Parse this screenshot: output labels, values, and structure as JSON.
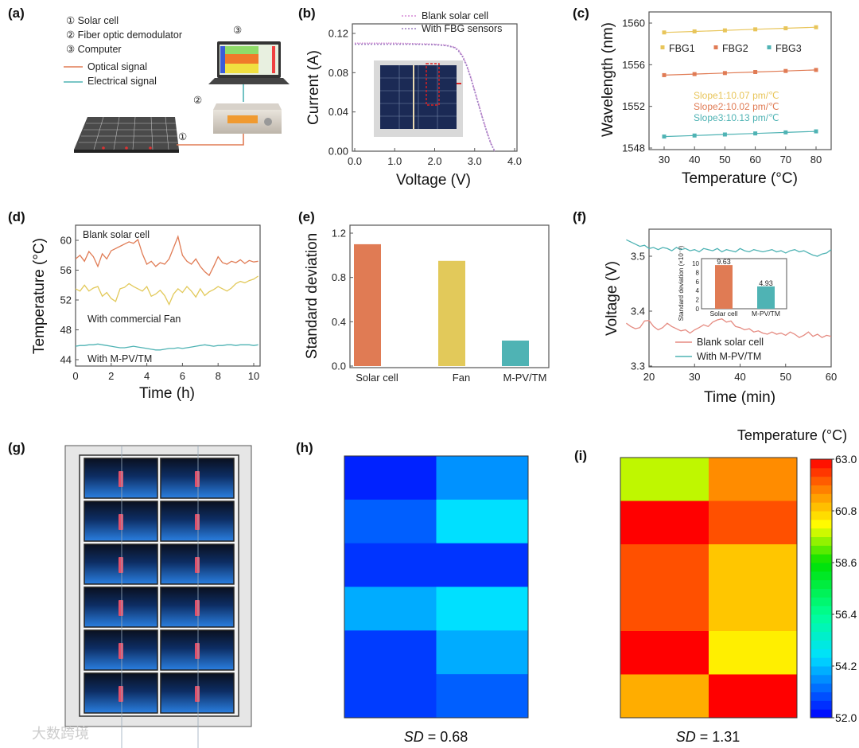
{
  "panel_labels": [
    "(a)",
    "(b)",
    "(c)",
    "(d)",
    "(e)",
    "(f)",
    "(g)",
    "(h)",
    "(i)"
  ],
  "panel_a": {
    "items": [
      "① Solar cell",
      "② Fiber optic demodulator",
      "③ Computer"
    ],
    "optical_signal": "Optical signal",
    "electrical_signal": "Electrical signal",
    "markers": [
      "①",
      "②",
      "③"
    ],
    "colors": {
      "optical": "#e07b54",
      "electrical": "#4fb3b4"
    }
  },
  "chart_data": [
    {
      "id": "b",
      "type": "line",
      "xlabel": "Voltage (V)",
      "ylabel": "Current (A)",
      "xlim": [
        0,
        4
      ],
      "ylim": [
        0,
        0.12
      ],
      "xticks": [
        "0.0",
        "1.0",
        "2.0",
        "3.0",
        "4.0"
      ],
      "xtick_values": [
        0,
        1,
        2,
        3,
        4
      ],
      "yticks": [
        "0.00",
        "0.04",
        "0.08",
        "0.12"
      ],
      "ytick_values": [
        0,
        0.04,
        0.08,
        0.12
      ],
      "legend_position": "top-right",
      "series": [
        {
          "name": "Blank solar cell",
          "color": "#d58bd6",
          "x": [
            0,
            0.5,
            1,
            1.5,
            2,
            2.3,
            2.5,
            2.6,
            2.7,
            2.8,
            2.9,
            3.0,
            3.1,
            3.2,
            3.3,
            3.4,
            3.5
          ],
          "y": [
            0.11,
            0.11,
            0.11,
            0.1095,
            0.109,
            0.108,
            0.106,
            0.103,
            0.097,
            0.088,
            0.076,
            0.062,
            0.048,
            0.034,
            0.021,
            0.009,
            0.0
          ]
        },
        {
          "name": "With FBG sensors",
          "color": "#9b7fc0",
          "x": [
            0,
            0.5,
            1,
            1.5,
            2,
            2.3,
            2.5,
            2.6,
            2.7,
            2.8,
            2.9,
            3.0,
            3.1,
            3.2,
            3.3,
            3.4,
            3.5
          ],
          "y": [
            0.109,
            0.109,
            0.109,
            0.109,
            0.1085,
            0.1075,
            0.1055,
            0.102,
            0.096,
            0.087,
            0.075,
            0.061,
            0.047,
            0.033,
            0.02,
            0.008,
            0.0
          ]
        }
      ]
    },
    {
      "id": "c",
      "type": "scatter",
      "xlabel": "Temperature (°C)",
      "ylabel": "Wavelength (nm)",
      "xlim": [
        30,
        80
      ],
      "ylim": [
        1548,
        1560
      ],
      "xticks": [
        "30",
        "40",
        "50",
        "60",
        "70",
        "80"
      ],
      "xtick_values": [
        30,
        40,
        50,
        60,
        70,
        80
      ],
      "yticks": [
        "1548",
        "1552",
        "1556",
        "1560"
      ],
      "ytick_values": [
        1548,
        1552,
        1556,
        1560
      ],
      "legend_position": "top",
      "series": [
        {
          "name": "FBG1",
          "color": "#e8c55a",
          "x": [
            30,
            40,
            50,
            60,
            70,
            80
          ],
          "y": [
            1559.1,
            1559.2,
            1559.3,
            1559.4,
            1559.5,
            1559.6
          ]
        },
        {
          "name": "FBG2",
          "color": "#e07b54",
          "x": [
            30,
            40,
            50,
            60,
            70,
            80
          ],
          "y": [
            1555.0,
            1555.1,
            1555.2,
            1555.3,
            1555.4,
            1555.5
          ]
        },
        {
          "name": "FBG3",
          "color": "#4fb3b4",
          "x": [
            30,
            40,
            50,
            60,
            70,
            80
          ],
          "y": [
            1549.1,
            1549.2,
            1549.3,
            1549.4,
            1549.5,
            1549.6
          ]
        }
      ],
      "annotations": [
        "Slope1:10.07 pm/℃",
        "Slope2:10.02 pm/℃",
        "Slope3:10.13 pm/℃"
      ]
    },
    {
      "id": "d",
      "type": "line",
      "xlabel": "Time (h)",
      "ylabel": "Temperature (°C)",
      "xlim": [
        0,
        10.3
      ],
      "ylim": [
        43,
        62
      ],
      "xticks": [
        "0",
        "2",
        "4",
        "6",
        "8",
        "10"
      ],
      "xtick_values": [
        0,
        2,
        4,
        6,
        8,
        10
      ],
      "yticks": [
        "44",
        "48",
        "52",
        "56",
        "60"
      ],
      "ytick_values": [
        44,
        48,
        52,
        56,
        60
      ],
      "x_step": 0.25,
      "series": [
        {
          "name": "Blank solar cell",
          "color": "#e07b54",
          "label_color": "#222222",
          "y": [
            57.5,
            58,
            57.2,
            58.5,
            57.8,
            56.5,
            58.2,
            57.5,
            58.6,
            58.9,
            59.2,
            59.5,
            59.8,
            59.6,
            60.1,
            58.2,
            56.8,
            57.2,
            56.5,
            57,
            56.8,
            57.5,
            59,
            60.5,
            58,
            57.2,
            56.8,
            57.5,
            56.5,
            55.8,
            55.3,
            56.5,
            57.8,
            57,
            56.8,
            57.2,
            57,
            57.4,
            56.9,
            57.3,
            57.1,
            57.2
          ]
        },
        {
          "name": "With commercial Fan",
          "color": "#e2c95a",
          "label_color": "#e2c95a",
          "y": [
            53.5,
            53.2,
            54,
            53.2,
            53.6,
            53.8,
            52.5,
            53,
            52.2,
            51.8,
            53.5,
            53.7,
            54.2,
            53.8,
            53.5,
            53.2,
            53.8,
            52.5,
            52.8,
            53.3,
            52.6,
            51.4,
            52.8,
            53.5,
            53,
            53.8,
            53.2,
            52.4,
            53.5,
            52.6,
            53.1,
            53.4,
            53.8,
            53.5,
            53.2,
            53.6,
            54.2,
            54.5,
            54.3,
            54.6,
            54.8,
            55.2
          ]
        },
        {
          "name": "With M-PV/TM",
          "color": "#4fb3b4",
          "label_color": "#4fb3b4",
          "y": [
            45.8,
            45.9,
            45.9,
            46.0,
            46.0,
            46.1,
            46.0,
            45.9,
            45.8,
            45.7,
            45.6,
            45.6,
            45.7,
            45.8,
            45.7,
            45.6,
            45.5,
            45.4,
            45.3,
            45.3,
            45.4,
            45.5,
            45.5,
            45.6,
            45.5,
            45.6,
            45.7,
            45.8,
            45.9,
            46.0,
            45.9,
            45.8,
            45.9,
            45.9,
            46.0,
            46.0,
            45.9,
            46.0,
            46.0,
            46.0,
            45.9,
            46.0
          ]
        }
      ]
    },
    {
      "id": "e",
      "type": "bar",
      "xlabel": "",
      "ylabel": "Standard deviation",
      "ylim": [
        0,
        1.3
      ],
      "yticks": [
        "0.0",
        "0.4",
        "0.8",
        "1.2"
      ],
      "ytick_values": [
        0,
        0.4,
        0.8,
        1.2
      ],
      "categories": [
        "Solar cell",
        "Fan",
        "M-PV/TM"
      ],
      "values": [
        1.1,
        0.95,
        0.23
      ],
      "colors": [
        "#e07b54",
        "#e2c95a",
        "#4fb3b4"
      ]
    },
    {
      "id": "f",
      "type": "line",
      "xlabel": "Time (min)",
      "ylabel": "Voltage (V)",
      "xlim": [
        15,
        60
      ],
      "ylim": [
        3.3,
        3.55
      ],
      "xticks": [
        "20",
        "30",
        "40",
        "50",
        "60"
      ],
      "xtick_values": [
        20,
        30,
        40,
        50,
        60
      ],
      "yticks": [
        "3.3",
        "3.4",
        "3.5"
      ],
      "ytick_values": [
        3.3,
        3.4,
        3.5
      ],
      "x_start": 15,
      "x_step": 1,
      "legend_position": "bottom-left",
      "series": [
        {
          "name": "Blank solar cell",
          "color": "#e58a80",
          "y": [
            3.378,
            3.372,
            3.368,
            3.37,
            3.382,
            3.383,
            3.372,
            3.366,
            3.37,
            3.378,
            3.372,
            3.368,
            3.364,
            3.366,
            3.36,
            3.366,
            3.37,
            3.375,
            3.372,
            3.38,
            3.384,
            3.386,
            3.38,
            3.382,
            3.372,
            3.37,
            3.366,
            3.368,
            3.362,
            3.364,
            3.36,
            3.358,
            3.362,
            3.358,
            3.36,
            3.356,
            3.362,
            3.358,
            3.352,
            3.356,
            3.362,
            3.354,
            3.358,
            3.352,
            3.356,
            3.354
          ]
        },
        {
          "name": "With M-PV/TM",
          "color": "#4fb3b4",
          "y": [
            3.53,
            3.526,
            3.522,
            3.518,
            3.52,
            3.514,
            3.516,
            3.512,
            3.516,
            3.514,
            3.51,
            3.516,
            3.512,
            3.514,
            3.51,
            3.512,
            3.508,
            3.514,
            3.512,
            3.51,
            3.514,
            3.508,
            3.512,
            3.51,
            3.508,
            3.514,
            3.51,
            3.508,
            3.512,
            3.51,
            3.508,
            3.51,
            3.512,
            3.508,
            3.51,
            3.506,
            3.51,
            3.512,
            3.508,
            3.51,
            3.506,
            3.502,
            3.5,
            3.504,
            3.506,
            3.512
          ]
        }
      ],
      "inset": {
        "type": "bar",
        "ylabel": "Standard deviation (×10⁻³)",
        "ylim": [
          0,
          10.5
        ],
        "yticks": [
          "0",
          "2",
          "4",
          "6",
          "8",
          "10"
        ],
        "ytick_values": [
          0,
          2,
          4,
          6,
          8,
          10
        ],
        "categories": [
          "Solar cell",
          "M-PV/TM"
        ],
        "values": [
          9.63,
          4.93
        ],
        "value_labels": [
          "9.63",
          "4.93"
        ],
        "colors": [
          "#e07b54",
          "#4fb3b4"
        ]
      }
    },
    {
      "id": "h",
      "type": "heatmap",
      "rows": 6,
      "cols": 2,
      "values": [
        [
          52.4,
          53.7
        ],
        [
          53.1,
          54.6
        ],
        [
          52.6,
          52.6
        ],
        [
          54.0,
          54.6
        ],
        [
          52.7,
          54.0
        ],
        [
          52.7,
          53.1
        ]
      ],
      "caption_prefix": "SD",
      "caption_value": " = 0.68"
    },
    {
      "id": "i",
      "type": "heatmap",
      "rows": 6,
      "cols": 2,
      "values": [
        [
          59.8,
          61.6
        ],
        [
          63.0,
          62.2
        ],
        [
          62.2,
          60.9
        ],
        [
          62.2,
          60.9
        ],
        [
          63.0,
          60.4
        ],
        [
          61.2,
          63.0
        ]
      ],
      "caption_prefix": "SD",
      "caption_value": " = 1.31",
      "colorbar": {
        "title": "Temperature (°C)",
        "range": [
          52.0,
          63.0
        ],
        "ticks": [
          "52.0",
          "54.2",
          "56.4",
          "58.6",
          "60.8",
          "63.0"
        ],
        "tick_values": [
          52.0,
          54.2,
          56.4,
          58.6,
          60.8,
          63.0
        ]
      }
    }
  ],
  "watermark": "大数跨境"
}
